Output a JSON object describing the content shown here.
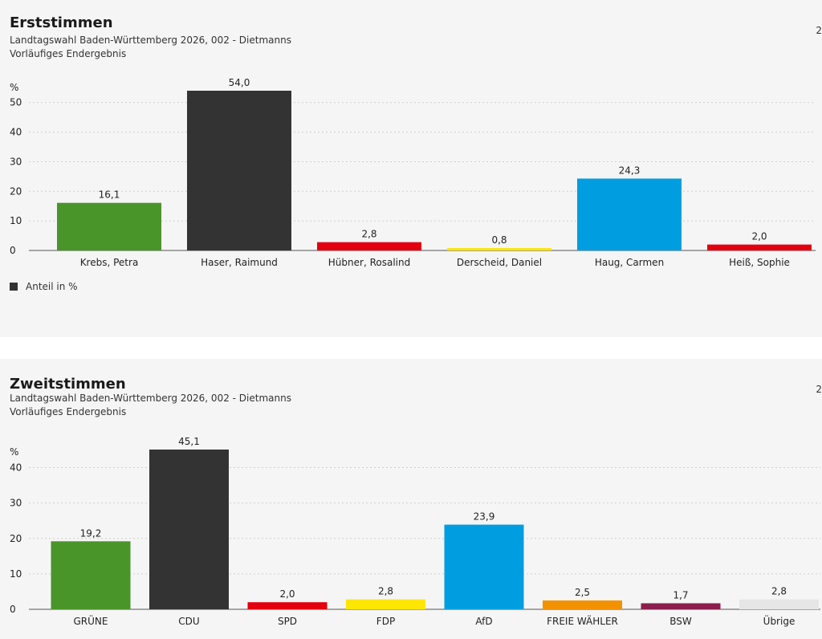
{
  "chart_data": [
    {
      "type": "bar",
      "title": "Erststimmen",
      "subtitle": "Landtagswahl Baden-Württemberg 2026, 002 - Dietmanns",
      "subtitle2": "Vorläufiges Endergebnis",
      "corner_mark": "2",
      "ylabel": "%",
      "ylim": [
        0,
        54
      ],
      "yticks": [
        "0",
        "10",
        "20",
        "30",
        "40",
        "50"
      ],
      "categories": [
        "Krebs, Petra",
        "Haser, Raimund",
        "Hübner, Rosalind",
        "Derscheid, Daniel",
        "Haug, Carmen",
        "Heiß, Sophie"
      ],
      "values": [
        16.1,
        54.0,
        2.8,
        0.8,
        24.3,
        2.0
      ],
      "value_labels": [
        "16,1",
        "54,0",
        "2,8",
        "0,8",
        "24,3",
        "2,0"
      ],
      "colors": [
        "#4a952a",
        "#333333",
        "#e3000f",
        "#ffe600",
        "#009ee0",
        "#e3000f"
      ],
      "legend": [
        {
          "label": "Anteil in %",
          "color": "#333333"
        }
      ]
    },
    {
      "type": "bar",
      "title": "Zweitstimmen",
      "subtitle": "Landtagswahl Baden-Württemberg 2026, 002 - Dietmanns",
      "subtitle2": "Vorläufiges Endergebnis",
      "corner_mark": "2",
      "ylabel": "%",
      "ylim": [
        0,
        45.1
      ],
      "yticks": [
        "0",
        "10",
        "20",
        "30",
        "40"
      ],
      "categories": [
        "GRÜNE",
        "CDU",
        "SPD",
        "FDP",
        "AfD",
        "FREIE WÄHLER",
        "BSW",
        "Übrige"
      ],
      "values": [
        19.2,
        45.1,
        2.0,
        2.8,
        23.9,
        2.5,
        1.7,
        2.8
      ],
      "value_labels": [
        "19,2",
        "45,1",
        "2,0",
        "2,8",
        "23,9",
        "2,5",
        "1,7",
        "2,8"
      ],
      "colors": [
        "#4a952a",
        "#333333",
        "#e3000f",
        "#ffe600",
        "#009ee0",
        "#f39200",
        "#8b1e4a",
        "#e6e6e6"
      ]
    }
  ]
}
